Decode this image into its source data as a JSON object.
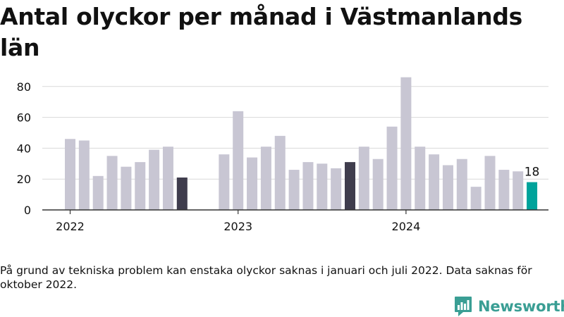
{
  "colors": {
    "bar_default": "#c8c6d3",
    "bar_highlight": "#3f3d4d",
    "bar_latest": "#00a39b",
    "axis": "#333333",
    "grid": "#d9d9d9",
    "text": "#111111",
    "brand": "#3a9e94"
  },
  "chart_data": {
    "type": "bar",
    "title": "Antal olyckor per månad i Västmanlands län",
    "x": [
      "2022-01",
      "2022-02",
      "2022-03",
      "2022-04",
      "2022-05",
      "2022-06",
      "2022-07",
      "2022-08",
      "2022-09",
      "2022-10",
      "2022-11",
      "2022-12",
      "2023-01",
      "2023-02",
      "2023-03",
      "2023-04",
      "2023-05",
      "2023-06",
      "2023-07",
      "2023-08",
      "2023-09",
      "2023-10",
      "2023-11",
      "2023-12",
      "2024-01",
      "2024-02",
      "2024-03",
      "2024-04",
      "2024-05",
      "2024-06",
      "2024-07",
      "2024-08",
      "2024-09",
      "2024-10"
    ],
    "values": [
      46,
      45,
      22,
      35,
      28,
      31,
      39,
      41,
      21,
      null,
      0,
      36,
      64,
      34,
      41,
      48,
      26,
      31,
      30,
      27,
      31,
      41,
      33,
      54,
      86,
      41,
      36,
      29,
      33,
      15,
      35,
      26,
      25,
      18
    ],
    "highlight": [
      "2022-09",
      "2023-09"
    ],
    "latest": "2024-10",
    "data_label": {
      "x": "2024-10",
      "text": "18"
    },
    "x_tick_labels": [
      {
        "at": "2022-01",
        "label": "2022"
      },
      {
        "at": "2023-01",
        "label": "2023"
      },
      {
        "at": "2024-01",
        "label": "2024"
      }
    ],
    "y_ticks": [
      0,
      20,
      40,
      60,
      80
    ],
    "ylim": [
      0,
      90
    ],
    "grid": true,
    "xlabel": "",
    "ylabel": ""
  },
  "footnote": "På grund av tekniska problem kan enstaka olyckor saknas i januari och juli 2022. Data saknas för oktober 2022.",
  "logo": {
    "icon": "bar-chart-chat-icon",
    "text": "Newsworthy"
  }
}
